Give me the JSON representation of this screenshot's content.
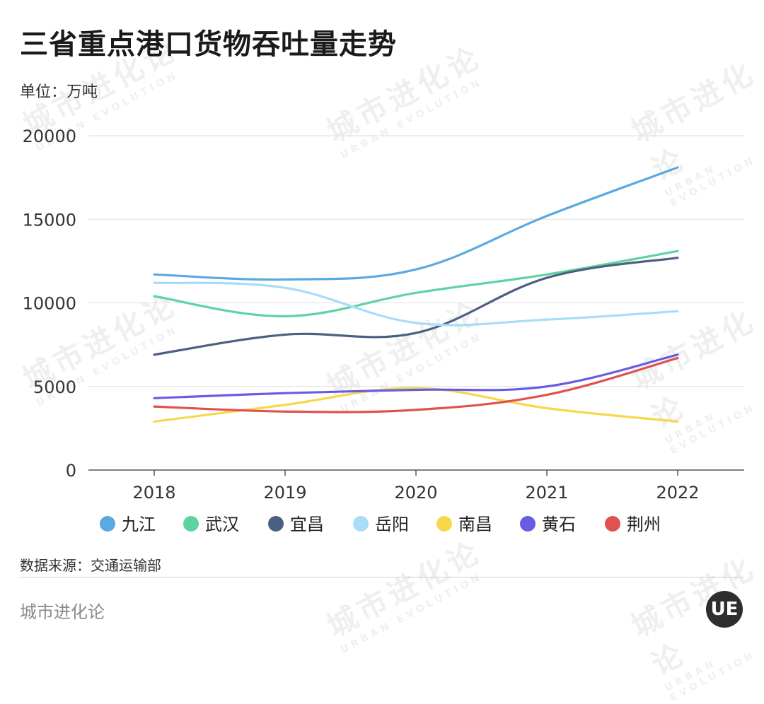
{
  "header": {
    "title": "三省重点港口货物吞吐量走势",
    "unit": "单位：万吨"
  },
  "footer": {
    "source": "数据来源：交通运输部",
    "brand": "城市进化论",
    "logo_text": "UE"
  },
  "watermark": {
    "cn": "城市进化论",
    "en": "URBAN EVOLUTION"
  },
  "chart_data": {
    "type": "line",
    "title": "三省重点港口货物吞吐量走势",
    "ylabel": "万吨",
    "xlabel": "",
    "x": [
      "2018",
      "2019",
      "2020",
      "2021",
      "2022"
    ],
    "ylim": [
      0,
      20000
    ],
    "yticks": [
      0,
      5000,
      10000,
      15000,
      20000
    ],
    "grid": true,
    "legend_position": "bottom",
    "series": [
      {
        "name": "九江",
        "color": "#5aa9e0",
        "values": [
          11700,
          11400,
          12000,
          15200,
          18100
        ]
      },
      {
        "name": "武汉",
        "color": "#5ed3a2",
        "values": [
          10400,
          9200,
          10600,
          11700,
          13100
        ]
      },
      {
        "name": "宜昌",
        "color": "#4d5f80",
        "values": [
          6900,
          8100,
          8200,
          11500,
          12700
        ]
      },
      {
        "name": "岳阳",
        "color": "#a9dcf6",
        "values": [
          11200,
          10900,
          8800,
          9000,
          9500
        ]
      },
      {
        "name": "南昌",
        "color": "#f8d84a",
        "values": [
          2900,
          3900,
          4900,
          3700,
          2900
        ]
      },
      {
        "name": "黄石",
        "color": "#6a5ce0",
        "values": [
          4300,
          4600,
          4800,
          5000,
          6900
        ]
      },
      {
        "name": "荆州",
        "color": "#e0524f",
        "values": [
          3800,
          3500,
          3600,
          4500,
          6700
        ]
      }
    ]
  }
}
